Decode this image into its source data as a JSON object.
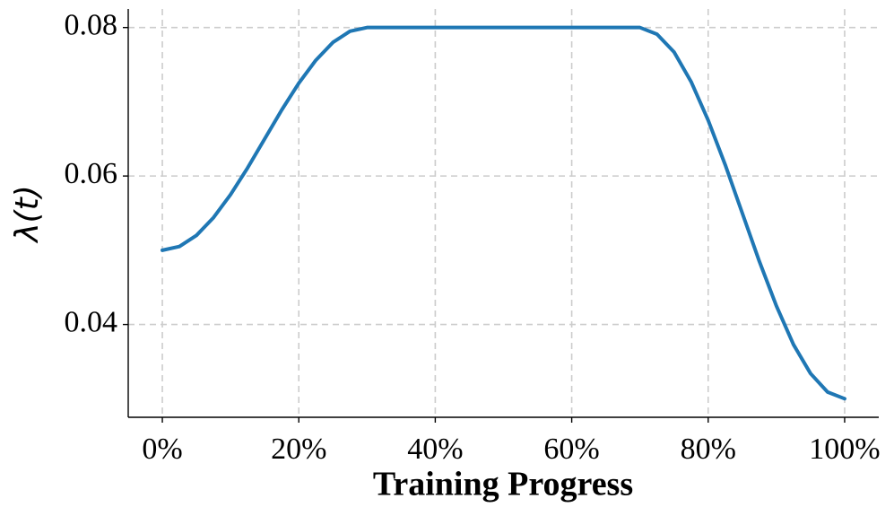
{
  "chart_data": {
    "type": "line",
    "x_label": "Training Progress",
    "y_label": "λ(t)",
    "x": [
      0,
      2.5,
      5,
      7.5,
      10,
      12.5,
      15,
      17.5,
      20,
      22.5,
      25,
      27.5,
      30,
      32.5,
      35,
      37.5,
      40,
      42.5,
      45,
      47.5,
      50,
      52.5,
      55,
      57.5,
      60,
      62.5,
      65,
      67.5,
      70,
      72.5,
      75,
      77.5,
      80,
      82.5,
      85,
      87.5,
      90,
      92.5,
      95,
      97.5,
      100
    ],
    "series": [
      {
        "name": "λ(t)",
        "color": "#1f77b4",
        "values": [
          0.05,
          0.0505,
          0.052,
          0.0544,
          0.0575,
          0.0611,
          0.065,
          0.0689,
          0.0725,
          0.0756,
          0.078,
          0.0795,
          0.08,
          0.08,
          0.08,
          0.08,
          0.08,
          0.08,
          0.08,
          0.08,
          0.08,
          0.08,
          0.08,
          0.08,
          0.08,
          0.08,
          0.08,
          0.08,
          0.08,
          0.0791,
          0.0767,
          0.0727,
          0.0675,
          0.0615,
          0.055,
          0.0485,
          0.0425,
          0.0373,
          0.0334,
          0.0309,
          0.03
        ]
      }
    ],
    "xlim": [
      -5,
      105
    ],
    "ylim": [
      0.0275,
      0.0825
    ],
    "xticks": [
      {
        "value": 0,
        "label": "0%"
      },
      {
        "value": 20,
        "label": "20%"
      },
      {
        "value": 40,
        "label": "40%"
      },
      {
        "value": 60,
        "label": "60%"
      },
      {
        "value": 80,
        "label": "80%"
      },
      {
        "value": 100,
        "label": "100%"
      }
    ],
    "yticks": [
      0.04,
      0.06,
      0.08
    ],
    "grid": true
  }
}
